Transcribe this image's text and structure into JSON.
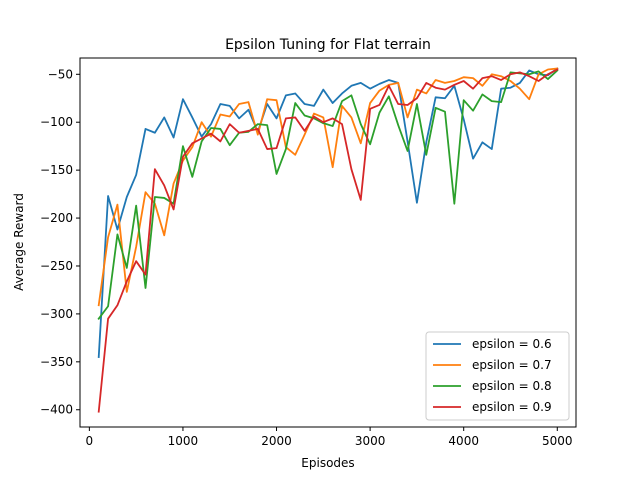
{
  "chart_data": {
    "type": "line",
    "title": "Epsilon Tuning for Flat terrain",
    "xlabel": "Episodes",
    "ylabel": "Average Reward",
    "xlim": [
      -100,
      5200
    ],
    "ylim": [
      -418,
      -33
    ],
    "xticks": [
      0,
      1000,
      2000,
      3000,
      4000,
      5000
    ],
    "yticks": [
      -400,
      -350,
      -300,
      -250,
      -200,
      -150,
      -100,
      -50
    ],
    "grid": false,
    "legend_position": "lower-right",
    "x": [
      100,
      200,
      300,
      400,
      500,
      600,
      700,
      800,
      900,
      1000,
      1100,
      1200,
      1300,
      1400,
      1500,
      1600,
      1700,
      1800,
      1900,
      2000,
      2100,
      2200,
      2300,
      2400,
      2500,
      2600,
      2700,
      2800,
      2900,
      3000,
      3100,
      3200,
      3300,
      3400,
      3500,
      3600,
      3700,
      3800,
      3900,
      4000,
      4100,
      4200,
      4300,
      4400,
      4500,
      4600,
      4700,
      4800,
      4900,
      5000
    ],
    "series": [
      {
        "name": "epsilon = 0.6",
        "color": "#1f77b4",
        "values": [
          -345,
          -177,
          -212,
          -178,
          -155,
          -107,
          -111,
          -95,
          -116,
          -76,
          -95,
          -115,
          -102,
          -81,
          -83,
          -96,
          -87,
          -110,
          -81,
          -96,
          -72,
          -70,
          -81,
          -83,
          -66,
          -80,
          -70,
          -62,
          -59,
          -65,
          -60,
          -56,
          -59,
          -120,
          -184,
          -121,
          -74,
          -75,
          -62,
          -97,
          -138,
          -121,
          -128,
          -65,
          -64,
          -59,
          -46,
          -50,
          -51,
          -44
        ]
      },
      {
        "name": "epsilon = 0.7",
        "color": "#ff7f0e",
        "values": [
          -291,
          -220,
          -186,
          -277,
          -230,
          -173,
          -185,
          -218,
          -164,
          -140,
          -126,
          -100,
          -115,
          -92,
          -94,
          -81,
          -79,
          -113,
          -76,
          -77,
          -126,
          -134,
          -113,
          -91,
          -95,
          -147,
          -83,
          -95,
          -122,
          -80,
          -67,
          -61,
          -59,
          -95,
          -66,
          -70,
          -56,
          -59,
          -57,
          -53,
          -54,
          -62,
          -50,
          -52,
          -57,
          -65,
          -76,
          -50,
          -45,
          -44
        ]
      },
      {
        "name": "epsilon = 0.8",
        "color": "#2ca02c",
        "values": [
          -305,
          -292,
          -217,
          -252,
          -187,
          -273,
          -178,
          -179,
          -185,
          -125,
          -157,
          -120,
          -106,
          -107,
          -124,
          -111,
          -110,
          -102,
          -103,
          -154,
          -128,
          -80,
          -93,
          -96,
          -101,
          -104,
          -78,
          -72,
          -102,
          -123,
          -90,
          -73,
          -103,
          -130,
          -81,
          -134,
          -85,
          -89,
          -185,
          -77,
          -88,
          -71,
          -78,
          -79,
          -48,
          -49,
          -50,
          -47,
          -55,
          -46
        ]
      },
      {
        "name": "epsilon = 0.9",
        "color": "#d62728",
        "values": [
          -402,
          -305,
          -291,
          -266,
          -245,
          -259,
          -149,
          -166,
          -191,
          -136,
          -122,
          -117,
          -112,
          -120,
          -102,
          -111,
          -109,
          -107,
          -128,
          -127,
          -96,
          -95,
          -109,
          -94,
          -100,
          -96,
          -102,
          -149,
          -181,
          -86,
          -82,
          -62,
          -81,
          -82,
          -75,
          -59,
          -64,
          -66,
          -61,
          -57,
          -65,
          -54,
          -52,
          -56,
          -50,
          -48,
          -52,
          -57,
          -50,
          -45
        ]
      }
    ]
  }
}
